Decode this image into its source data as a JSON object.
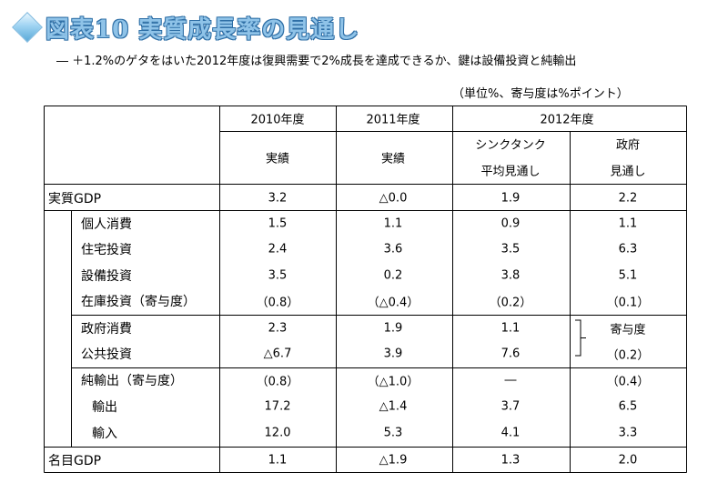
{
  "title": "図表10 実質成長率の見通し",
  "subtitle": "― ＋1.2%のゲタをはいた2012年度は復興需要で2%成長を達成できるか、鍵は設備投資と純輸出",
  "unit_note": "（単位%、寄与度は%ポイント）",
  "header": {
    "y2010": "2010年度",
    "y2011": "2011年度",
    "y2012": "2012年度",
    "actual1": "実績",
    "actual2": "実績",
    "think_tank_line1": "シンクタンク",
    "think_tank_line2": "平均見通し",
    "gov_line1": "政府",
    "gov_line2": "見通し"
  },
  "rows": [
    {
      "label": "実質GDP",
      "v2010": "3.2",
      "v2011": "△0.0",
      "tt2012": "1.9",
      "gov2012": "2.2"
    },
    {
      "label": "個人消費",
      "v2010": "1.5",
      "v2011": "1.1",
      "tt2012": "0.9",
      "gov2012": "1.1"
    },
    {
      "label": "住宅投資",
      "v2010": "2.4",
      "v2011": "3.6",
      "tt2012": "3.5",
      "gov2012": "6.3"
    },
    {
      "label": "設備投資",
      "v2010": "3.5",
      "v2011": "0.2",
      "tt2012": "3.8",
      "gov2012": "5.1"
    },
    {
      "label": "在庫投資（寄与度）",
      "v2010": "（0.8）",
      "v2011": "（△0.4）",
      "tt2012": "（0.2）",
      "gov2012": "（0.1）"
    },
    {
      "label": "政府消費",
      "v2010": "2.3",
      "v2011": "1.9",
      "tt2012": "1.1",
      "gov2012": "寄与度"
    },
    {
      "label": "公共投資",
      "v2010": "△6.7",
      "v2011": "3.9",
      "tt2012": "7.6",
      "gov2012": "（0.2）"
    },
    {
      "label": "純輸出（寄与度）",
      "v2010": "（0.8）",
      "v2011": "（△1.0）",
      "tt2012": "―",
      "gov2012": "（0.4）"
    },
    {
      "label": "輸出",
      "v2010": "17.2",
      "v2011": "△1.4",
      "tt2012": "3.7",
      "gov2012": "6.5"
    },
    {
      "label": "輸入",
      "v2010": "12.0",
      "v2011": "5.3",
      "tt2012": "4.1",
      "gov2012": "3.3"
    },
    {
      "label": "名目GDP",
      "v2010": "1.1",
      "v2011": "△1.9",
      "tt2012": "1.3",
      "gov2012": "2.0"
    }
  ]
}
